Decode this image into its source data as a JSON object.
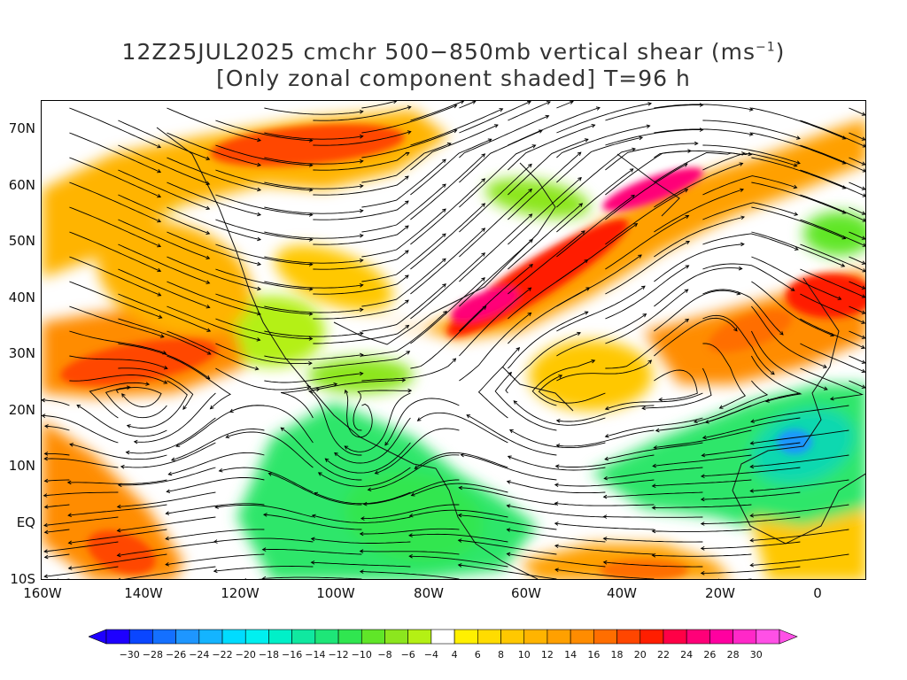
{
  "title": {
    "line1_prefix": "12Z25JUL2025 cmchr 500−850mb vertical shear (ms",
    "line1_sup": "−1",
    "line1_suffix": ")",
    "line2": "[Only zonal component shaded] T=96 h"
  },
  "axes": {
    "lat_labels": [
      "70N",
      "60N",
      "50N",
      "40N",
      "30N",
      "20N",
      "10N",
      "EQ",
      "10S"
    ],
    "lon_labels": [
      "160W",
      "140W",
      "120W",
      "100W",
      "80W",
      "60W",
      "40W",
      "20W",
      "0"
    ]
  },
  "colorbar": {
    "labels": [
      "−30",
      "−28",
      "−26",
      "−24",
      "−22",
      "−20",
      "−18",
      "−16",
      "−14",
      "−12",
      "−10",
      "−8",
      "−6",
      "−4",
      "4",
      "6",
      "8",
      "10",
      "12",
      "14",
      "16",
      "18",
      "20",
      "22",
      "24",
      "26",
      "28",
      "30"
    ],
    "colors": [
      "#1e00ff",
      "#0a46ff",
      "#1470ff",
      "#1e96ff",
      "#14b4ff",
      "#00dcff",
      "#00f0f0",
      "#00f0c8",
      "#10e8a0",
      "#1ee678",
      "#30e650",
      "#60e628",
      "#8ce61e",
      "#b4f014",
      "#ffffff",
      "#fff000",
      "#ffdc00",
      "#ffc800",
      "#ffb400",
      "#ffa000",
      "#ff8c00",
      "#ff6e00",
      "#ff4600",
      "#ff1e00",
      "#ff0046",
      "#ff0078",
      "#ff00a0",
      "#ff28c8",
      "#ff50e6"
    ]
  }
}
